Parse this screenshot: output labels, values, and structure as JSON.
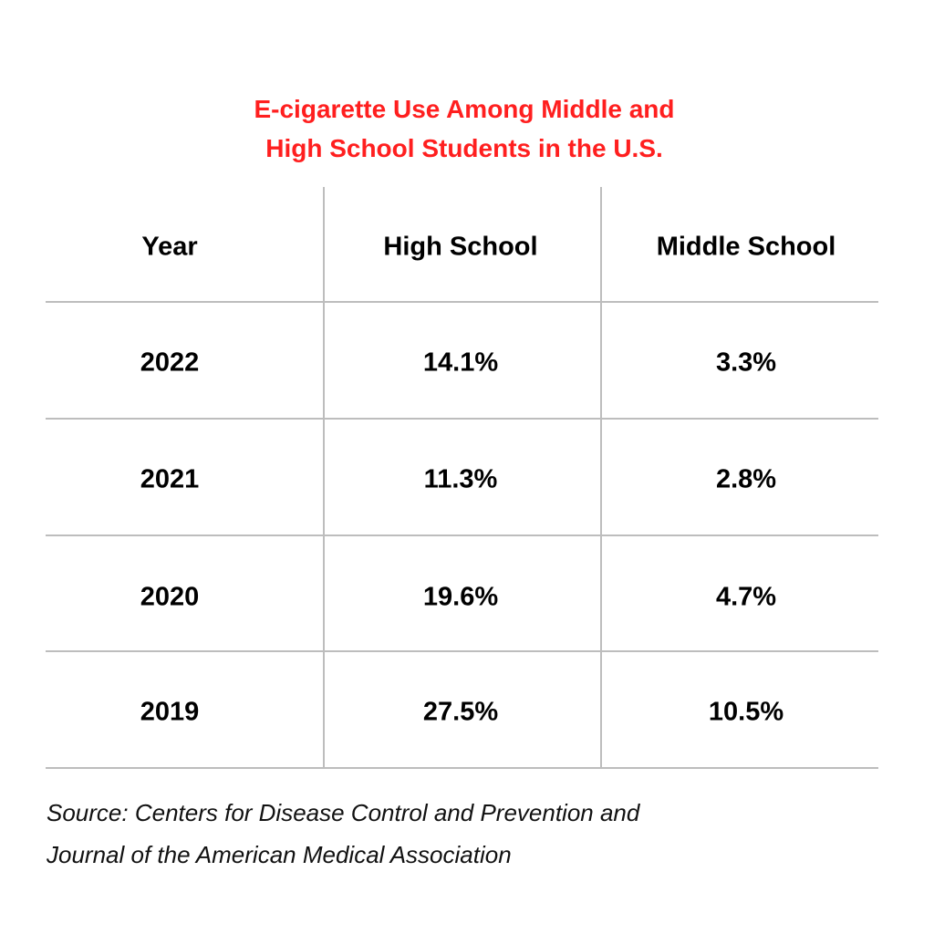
{
  "chart_data": {
    "type": "table",
    "title": [
      "E-cigarette Use Among Middle and",
      "High School Students in the U.S."
    ],
    "columns": [
      "Year",
      "High  School",
      "Middle School"
    ],
    "rows": [
      [
        "2022",
        "14.1%",
        "3.3%"
      ],
      [
        "2021",
        "11.3%",
        "2.8%"
      ],
      [
        "2020",
        "19.6%",
        "4.7%"
      ],
      [
        "2019",
        "27.5%",
        "10.5%"
      ]
    ],
    "source": [
      "Source: Centers for Disease Control and Prevention and",
      "Journal of the American Medical Association"
    ],
    "colors": {
      "title": "#ff1f1f",
      "text": "#000000",
      "gridlines": "#bdbdbd"
    }
  }
}
